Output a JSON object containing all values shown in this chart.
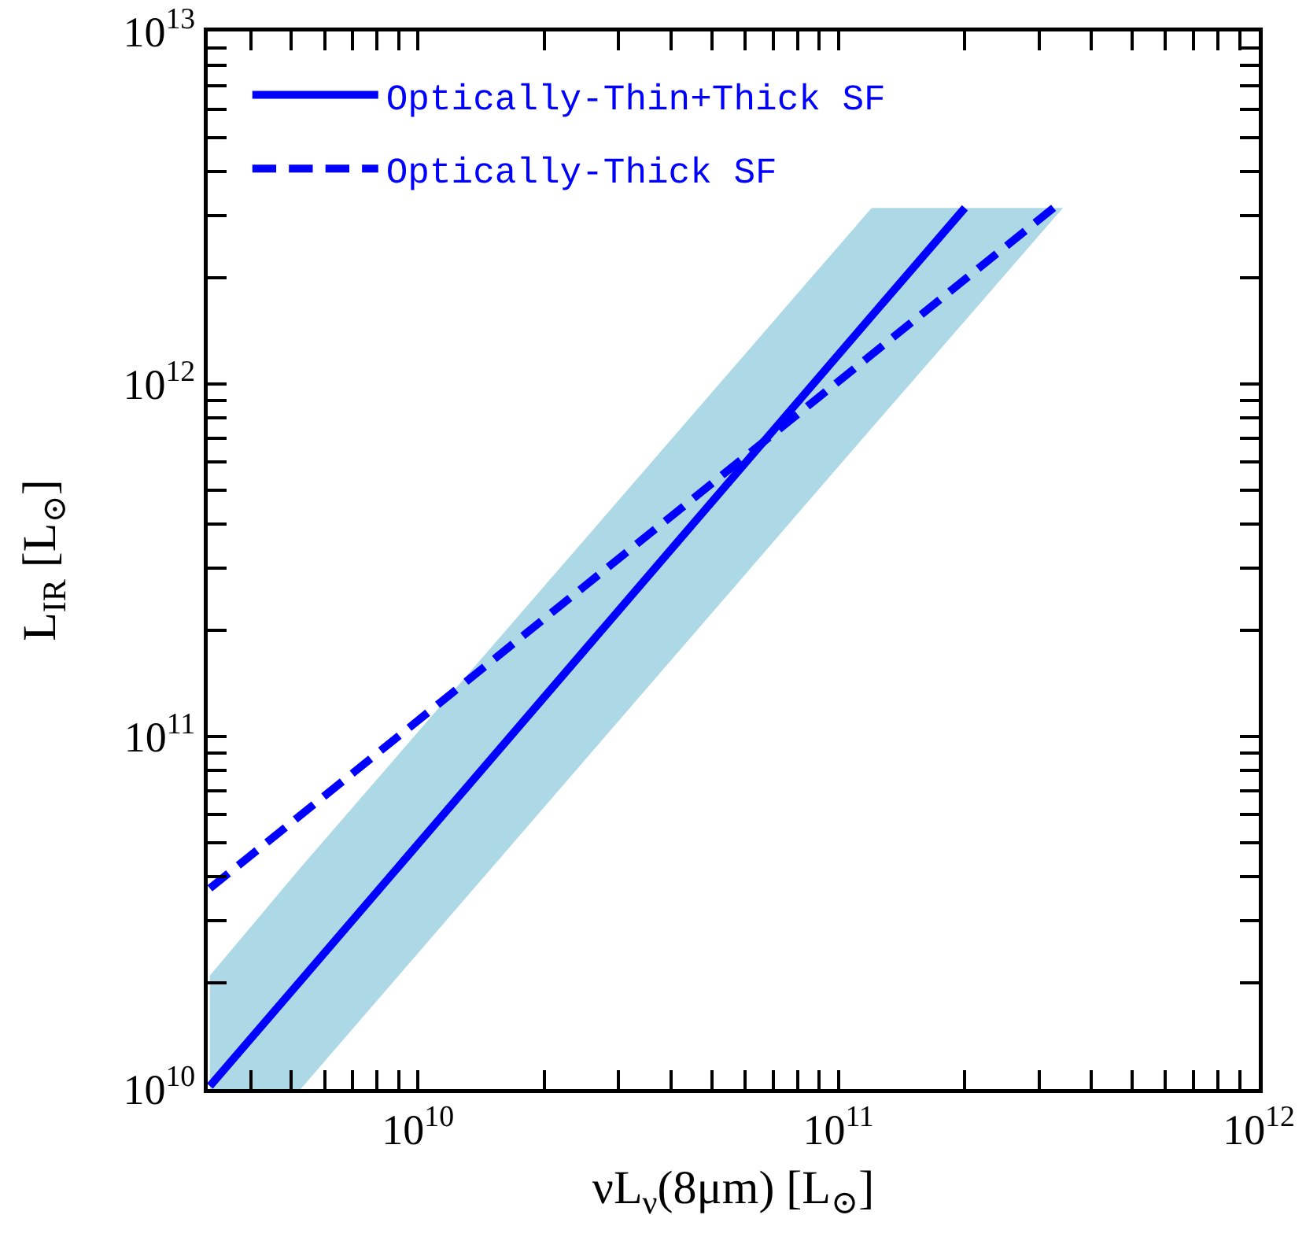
{
  "chart_data": {
    "type": "line",
    "xlabel": "νL$_{ν}$(8μm) [L$_{⊙}$]",
    "ylabel": "L$_{IR}$ [L$_{⊙}$]",
    "log": "xy",
    "grid": false,
    "legend": "top left",
    "xlim": [
      3162000000.0,
      1000000000000.0
    ],
    "xticks": [
      {
        "value": 4000000000.0,
        "label": null
      },
      {
        "value": 5000000000.0,
        "label": null
      },
      {
        "value": 6000000000.0,
        "label": null
      },
      {
        "value": 7000000000.0,
        "label": null
      },
      {
        "value": 8000000000.0,
        "label": null
      },
      {
        "value": 9000000000.0,
        "label": null
      },
      {
        "value": 10000000000.0,
        "label": "10$^{10}$"
      },
      {
        "value": 20000000000.0,
        "label": null
      },
      {
        "value": 30000000000.0,
        "label": null
      },
      {
        "value": 40000000000.0,
        "label": null
      },
      {
        "value": 50000000000.0,
        "label": null
      },
      {
        "value": 60000000000.0,
        "label": null
      },
      {
        "value": 70000000000.0,
        "label": null
      },
      {
        "value": 80000000000.0,
        "label": null
      },
      {
        "value": 90000000000.0,
        "label": null
      },
      {
        "value": 100000000000.0,
        "label": "10$^{11}$"
      },
      {
        "value": 200000000000.0,
        "label": null
      },
      {
        "value": 300000000000.0,
        "label": null
      },
      {
        "value": 400000000000.0,
        "label": null
      },
      {
        "value": 500000000000.0,
        "label": null
      },
      {
        "value": 600000000000.0,
        "label": null
      },
      {
        "value": 700000000000.0,
        "label": null
      },
      {
        "value": 800000000000.0,
        "label": null
      },
      {
        "value": 900000000000.0,
        "label": null
      },
      {
        "value": 1000000000000.0,
        "label": "10$^{12}$"
      }
    ],
    "ylim": [
      10000000000.0,
      10000000000000.0
    ],
    "yticks": [
      {
        "value": 10000000000.0,
        "label": "10$^{10}$"
      },
      {
        "value": 20000000000.0,
        "label": null
      },
      {
        "value": 30000000000.0,
        "label": null
      },
      {
        "value": 40000000000.0,
        "label": null
      },
      {
        "value": 50000000000.0,
        "label": null
      },
      {
        "value": 60000000000.0,
        "label": null
      },
      {
        "value": 70000000000.0,
        "label": null
      },
      {
        "value": 80000000000.0,
        "label": null
      },
      {
        "value": 90000000000.0,
        "label": null
      },
      {
        "value": 100000000000.0,
        "label": "10$^{11}$"
      },
      {
        "value": 200000000000.0,
        "label": null
      },
      {
        "value": 300000000000.0,
        "label": null
      },
      {
        "value": 400000000000.0,
        "label": null
      },
      {
        "value": 500000000000.0,
        "label": null
      },
      {
        "value": 600000000000.0,
        "label": null
      },
      {
        "value": 700000000000.0,
        "label": null
      },
      {
        "value": 800000000000.0,
        "label": null
      },
      {
        "value": 900000000000.0,
        "label": null
      },
      {
        "value": 1000000000000.0,
        "label": "10$^{12}$"
      },
      {
        "value": 2000000000000.0,
        "label": null
      },
      {
        "value": 3000000000000.0,
        "label": null
      },
      {
        "value": 4000000000000.0,
        "label": null
      },
      {
        "value": 5000000000000.0,
        "label": null
      },
      {
        "value": 6000000000000.0,
        "label": null
      },
      {
        "value": 7000000000000.0,
        "label": null
      },
      {
        "value": 8000000000000.0,
        "label": null
      },
      {
        "value": 9000000000000.0,
        "label": null
      },
      {
        "value": 10000000000000.0,
        "label": "10$^{13}$"
      }
    ],
    "series": [
      {
        "name": "Optically-Thin+Thick SF",
        "color": "#0000ff",
        "line_style": "solid",
        "x": [
          3200000000.0,
          5260000000.0,
          120000000000.0,
          200000000000.0,
          342000000000.0
        ],
        "values": [
          10200000000.0,
          20300000000.0,
          1560000000000.0,
          3160000000000.0,
          null
        ],
        "lower": [
          10000000000.0,
          10000000000.0,
          750000000000.0,
          1510000000000.0,
          3160000000000.0
        ],
        "upper": [
          21000000000.0,
          42500000000.0,
          3160000000000.0,
          3160000000000.0,
          3160000000000.0
        ]
      },
      {
        "name": "Optically-Thick SF",
        "color": "#0000ff",
        "line_style": "dashed",
        "x": [
          3200000000.0,
          325000000000.0
        ],
        "values": [
          37100000000.0,
          3160000000000.0
        ]
      }
    ]
  }
}
